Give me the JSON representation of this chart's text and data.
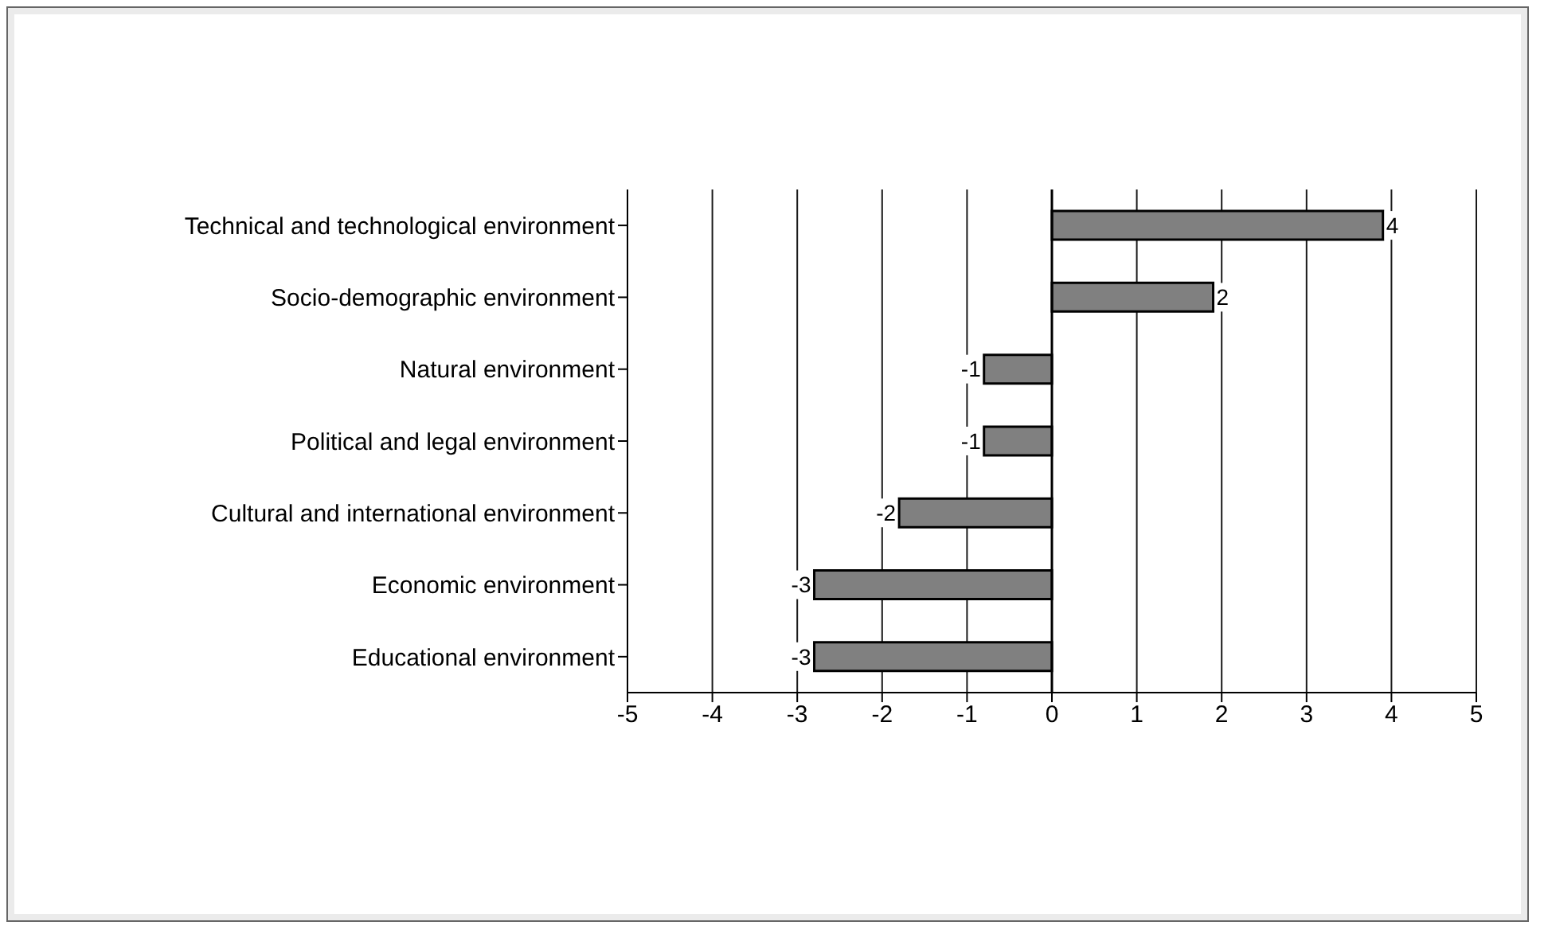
{
  "chart_data": {
    "type": "bar",
    "orientation": "horizontal",
    "categories": [
      "Technical and technological environment",
      "Socio-demographic environment",
      "Natural environment",
      "Political and legal environment",
      "Cultural and international environment",
      "Economic environment",
      "Educational environment"
    ],
    "values": [
      3.9,
      1.9,
      -0.8,
      -0.8,
      -1.8,
      -2.8,
      -2.8
    ],
    "value_labels": [
      "4",
      "2",
      "-1",
      "-1",
      "-2",
      "-3",
      "-3"
    ],
    "color": "#808080",
    "xlim": [
      -5,
      5
    ],
    "xticks": [
      -5,
      -4,
      -3,
      -2,
      -1,
      0,
      1,
      2,
      3,
      4,
      5
    ],
    "grid": "x"
  }
}
